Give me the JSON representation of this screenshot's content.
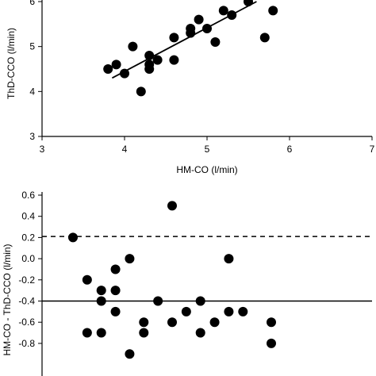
{
  "chart_data": [
    {
      "type": "scatter",
      "xlabel": "HM-CO (l/min)",
      "ylabel": "ThD-CCO (l/min)",
      "xlim": [
        3,
        7
      ],
      "ylim": [
        3,
        6
      ],
      "xticks": [
        "3",
        "4",
        "5",
        "6",
        "7"
      ],
      "yticks": [
        "3",
        "4",
        "5",
        "6"
      ],
      "grid": false,
      "points": [
        {
          "x": 3.8,
          "y": 4.5
        },
        {
          "x": 3.9,
          "y": 4.6
        },
        {
          "x": 4.0,
          "y": 4.4
        },
        {
          "x": 4.1,
          "y": 5.0
        },
        {
          "x": 4.2,
          "y": 4.0
        },
        {
          "x": 4.3,
          "y": 4.5
        },
        {
          "x": 4.3,
          "y": 4.6
        },
        {
          "x": 4.3,
          "y": 4.8
        },
        {
          "x": 4.4,
          "y": 4.7
        },
        {
          "x": 4.6,
          "y": 4.7
        },
        {
          "x": 4.6,
          "y": 5.2
        },
        {
          "x": 4.8,
          "y": 5.3
        },
        {
          "x": 4.8,
          "y": 5.4
        },
        {
          "x": 4.9,
          "y": 5.6
        },
        {
          "x": 5.0,
          "y": 5.4
        },
        {
          "x": 5.1,
          "y": 5.1
        },
        {
          "x": 5.2,
          "y": 5.8
        },
        {
          "x": 5.3,
          "y": 5.7
        },
        {
          "x": 5.5,
          "y": 6.0
        },
        {
          "x": 5.7,
          "y": 5.2
        },
        {
          "x": 5.8,
          "y": 5.8
        }
      ],
      "regression_line": {
        "x": [
          3.85,
          5.6
        ],
        "y": [
          4.3,
          6.0
        ]
      }
    },
    {
      "type": "scatter",
      "xlabel": "",
      "ylabel": "HM-CO - ThD-CCO (l/min)",
      "xlim": [
        3,
        7
      ],
      "ylim": [
        -0.9,
        0.6
      ],
      "yticks": [
        "0.6",
        "0.4",
        "0.2",
        "0.0",
        "-0.2",
        "-0.4",
        "-0.6",
        "-0.8"
      ],
      "grid": false,
      "reference_lines": [
        {
          "y": 0.21,
          "style": "dashed"
        },
        {
          "y": -0.4,
          "style": "solid"
        }
      ],
      "points": [
        {
          "x": 4.9,
          "y": 0.2
        },
        {
          "x": 5.6,
          "y": 0.5
        },
        {
          "x": 5.3,
          "y": 0.0
        },
        {
          "x": 6.0,
          "y": 0.0
        },
        {
          "x": 5.2,
          "y": -0.1
        },
        {
          "x": 5.0,
          "y": -0.2
        },
        {
          "x": 5.1,
          "y": -0.3
        },
        {
          "x": 5.2,
          "y": -0.3
        },
        {
          "x": 5.1,
          "y": -0.4
        },
        {
          "x": 5.5,
          "y": -0.4
        },
        {
          "x": 5.8,
          "y": -0.4
        },
        {
          "x": 5.2,
          "y": -0.5
        },
        {
          "x": 5.7,
          "y": -0.5
        },
        {
          "x": 6.0,
          "y": -0.5
        },
        {
          "x": 6.1,
          "y": -0.5
        },
        {
          "x": 5.4,
          "y": -0.6
        },
        {
          "x": 5.6,
          "y": -0.6
        },
        {
          "x": 5.9,
          "y": -0.6
        },
        {
          "x": 6.3,
          "y": -0.6
        },
        {
          "x": 5.0,
          "y": -0.7
        },
        {
          "x": 5.1,
          "y": -0.7
        },
        {
          "x": 5.4,
          "y": -0.7
        },
        {
          "x": 5.8,
          "y": -0.7
        },
        {
          "x": 6.3,
          "y": -0.8
        },
        {
          "x": 5.3,
          "y": -0.9
        }
      ]
    }
  ]
}
